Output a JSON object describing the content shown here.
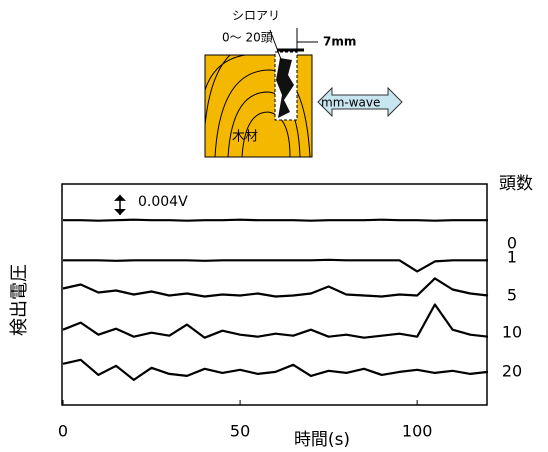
{
  "diagram": {
    "labels": [
      "シロアリ",
      "0〜 20頭",
      "7mm",
      "mm-wave",
      "木材"
    ]
  },
  "chart_data": {
    "type": "line",
    "ylabel": "検出電圧",
    "xlabel": "時間(s)",
    "legend_title": "頭数",
    "scale_bar": {
      "label": "0.004V",
      "value": 0.004
    },
    "x": [
      0,
      5,
      10,
      15,
      20,
      25,
      30,
      35,
      40,
      45,
      50,
      55,
      60,
      65,
      70,
      75,
      80,
      85,
      90,
      95,
      100,
      105,
      110,
      115,
      120
    ],
    "xlim": [
      0,
      120
    ],
    "xticks": [
      0,
      50,
      100
    ],
    "ylim": [
      0,
      0.044
    ],
    "series": [
      {
        "name": "0",
        "color": "#000000",
        "values": [
          0.0368,
          0.0368,
          0.0367,
          0.0368,
          0.0369,
          0.0368,
          0.0368,
          0.0367,
          0.0368,
          0.0368,
          0.0369,
          0.0368,
          0.0368,
          0.0368,
          0.0367,
          0.0368,
          0.0368,
          0.0368,
          0.0369,
          0.0368,
          0.0368,
          0.0367,
          0.0368,
          0.0368,
          0.0368
        ]
      },
      {
        "name": "1",
        "color": "#000000",
        "values": [
          0.0288,
          0.0288,
          0.0288,
          0.0287,
          0.0288,
          0.0288,
          0.0288,
          0.0288,
          0.0287,
          0.0288,
          0.0288,
          0.0288,
          0.0288,
          0.0288,
          0.0288,
          0.0289,
          0.0288,
          0.0288,
          0.0288,
          0.0288,
          0.0266,
          0.0286,
          0.0288,
          0.0288,
          0.0288
        ]
      },
      {
        "name": "5",
        "color": "#000000",
        "values": [
          0.0232,
          0.024,
          0.0224,
          0.0228,
          0.022,
          0.0226,
          0.0218,
          0.0222,
          0.0216,
          0.022,
          0.0218,
          0.0222,
          0.0216,
          0.0218,
          0.0222,
          0.0236,
          0.022,
          0.0218,
          0.0216,
          0.022,
          0.0218,
          0.0252,
          0.023,
          0.0222,
          0.0218
        ]
      },
      {
        "name": "10",
        "color": "#000000",
        "values": [
          0.015,
          0.0164,
          0.014,
          0.0152,
          0.0136,
          0.0144,
          0.0138,
          0.016,
          0.0134,
          0.0148,
          0.014,
          0.0136,
          0.0142,
          0.0138,
          0.015,
          0.0136,
          0.014,
          0.0134,
          0.0138,
          0.0142,
          0.0136,
          0.02,
          0.015,
          0.014,
          0.0136
        ]
      },
      {
        "name": "20",
        "color": "#000000",
        "values": [
          0.0082,
          0.009,
          0.006,
          0.0078,
          0.005,
          0.0074,
          0.0062,
          0.0058,
          0.0072,
          0.0064,
          0.007,
          0.0062,
          0.0066,
          0.008,
          0.0058,
          0.0068,
          0.0064,
          0.0072,
          0.006,
          0.0066,
          0.007,
          0.0064,
          0.0068,
          0.0062,
          0.0066
        ]
      }
    ]
  }
}
